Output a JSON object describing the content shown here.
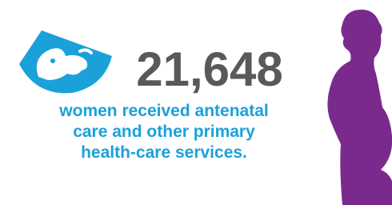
{
  "stat": {
    "value": "21,648",
    "description": [
      "women received antenatal",
      "care and other primary",
      "health-care services."
    ]
  }
}
